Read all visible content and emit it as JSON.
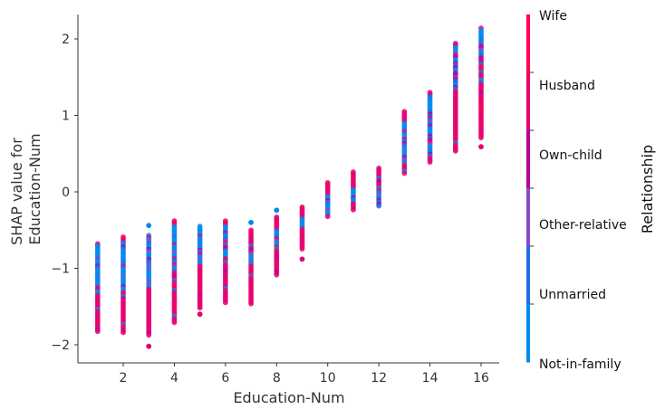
{
  "chart_data": {
    "type": "scatter",
    "title": "",
    "xlabel": "Education-Num",
    "ylabel_lines": [
      "SHAP value for",
      "Education-Num"
    ],
    "xlim": [
      0.3,
      16.8
    ],
    "ylim": [
      -2.23,
      2.33
    ],
    "x_ticks": [
      2,
      4,
      6,
      8,
      10,
      12,
      14,
      16
    ],
    "y_ticks": [
      -2,
      -1,
      0,
      1,
      2
    ],
    "y_tick_labels": [
      "−2",
      "−1",
      "0",
      "1",
      "2"
    ],
    "grid": false,
    "colorbar": {
      "title": "Relationship",
      "categories": [
        {
          "label": "Wife",
          "color": "#ff0052"
        },
        {
          "label": "Husband",
          "color": "#e8006e"
        },
        {
          "label": "Own-child",
          "color": "#b5009e"
        },
        {
          "label": "Other-relative",
          "color": "#8a48c8"
        },
        {
          "label": "Unmarried",
          "color": "#1e6fe6"
        },
        {
          "label": "Not-in-family",
          "color": "#008bf0"
        }
      ]
    },
    "columns": [
      {
        "x": 1,
        "y_min": -1.85,
        "y_max": -0.68,
        "blue_top": -0.68,
        "blue_bottom": -1.38,
        "outliers": []
      },
      {
        "x": 2,
        "y_min": -1.85,
        "y_max": -0.59,
        "blue_top": -0.65,
        "blue_bottom": -1.3,
        "outliers": []
      },
      {
        "x": 3,
        "y_min": -1.88,
        "y_max": -0.57,
        "blue_top": -0.57,
        "blue_bottom": -1.25,
        "outliers": [
          -2.02,
          -0.44
        ]
      },
      {
        "x": 4,
        "y_min": -1.72,
        "y_max": -0.38,
        "blue_top": -0.45,
        "blue_bottom": -1.05,
        "outliers": []
      },
      {
        "x": 5,
        "y_min": -1.52,
        "y_max": -0.45,
        "blue_top": -0.45,
        "blue_bottom": -0.95,
        "outliers": [
          -1.6
        ]
      },
      {
        "x": 6,
        "y_min": -1.45,
        "y_max": -0.38,
        "blue_top": -0.45,
        "blue_bottom": -0.85,
        "outliers": []
      },
      {
        "x": 7,
        "y_min": -1.47,
        "y_max": -0.5,
        "blue_top": -0.7,
        "blue_bottom": -0.95,
        "outliers": [
          -0.4
        ]
      },
      {
        "x": 8,
        "y_min": -1.1,
        "y_max": -0.33,
        "blue_top": -0.5,
        "blue_bottom": -0.7,
        "outliers": [
          -0.24
        ]
      },
      {
        "x": 9,
        "y_min": -0.77,
        "y_max": -0.2,
        "blue_top": -0.35,
        "blue_bottom": -0.5,
        "outliers": [
          -0.88
        ]
      },
      {
        "x": 10,
        "y_min": -0.34,
        "y_max": 0.12,
        "blue_top": -0.05,
        "blue_bottom": -0.3,
        "outliers": []
      },
      {
        "x": 11,
        "y_min": -0.24,
        "y_max": 0.26,
        "blue_top": 0.05,
        "blue_bottom": -0.15,
        "outliers": []
      },
      {
        "x": 12,
        "y_min": -0.19,
        "y_max": 0.31,
        "blue_top": 0.05,
        "blue_bottom": -0.19,
        "outliers": []
      },
      {
        "x": 13,
        "y_min": 0.22,
        "y_max": 1.05,
        "blue_top": 0.9,
        "blue_bottom": 0.35,
        "outliers": []
      },
      {
        "x": 14,
        "y_min": 0.38,
        "y_max": 1.3,
        "blue_top": 1.25,
        "blue_bottom": 0.45,
        "outliers": []
      },
      {
        "x": 15,
        "y_min": 0.52,
        "y_max": 1.94,
        "blue_top": 1.94,
        "blue_bottom": 1.35,
        "outliers": []
      },
      {
        "x": 16,
        "y_min": 0.7,
        "y_max": 2.14,
        "blue_top": 2.14,
        "blue_bottom": 1.65,
        "outliers": [
          0.59
        ]
      }
    ]
  }
}
